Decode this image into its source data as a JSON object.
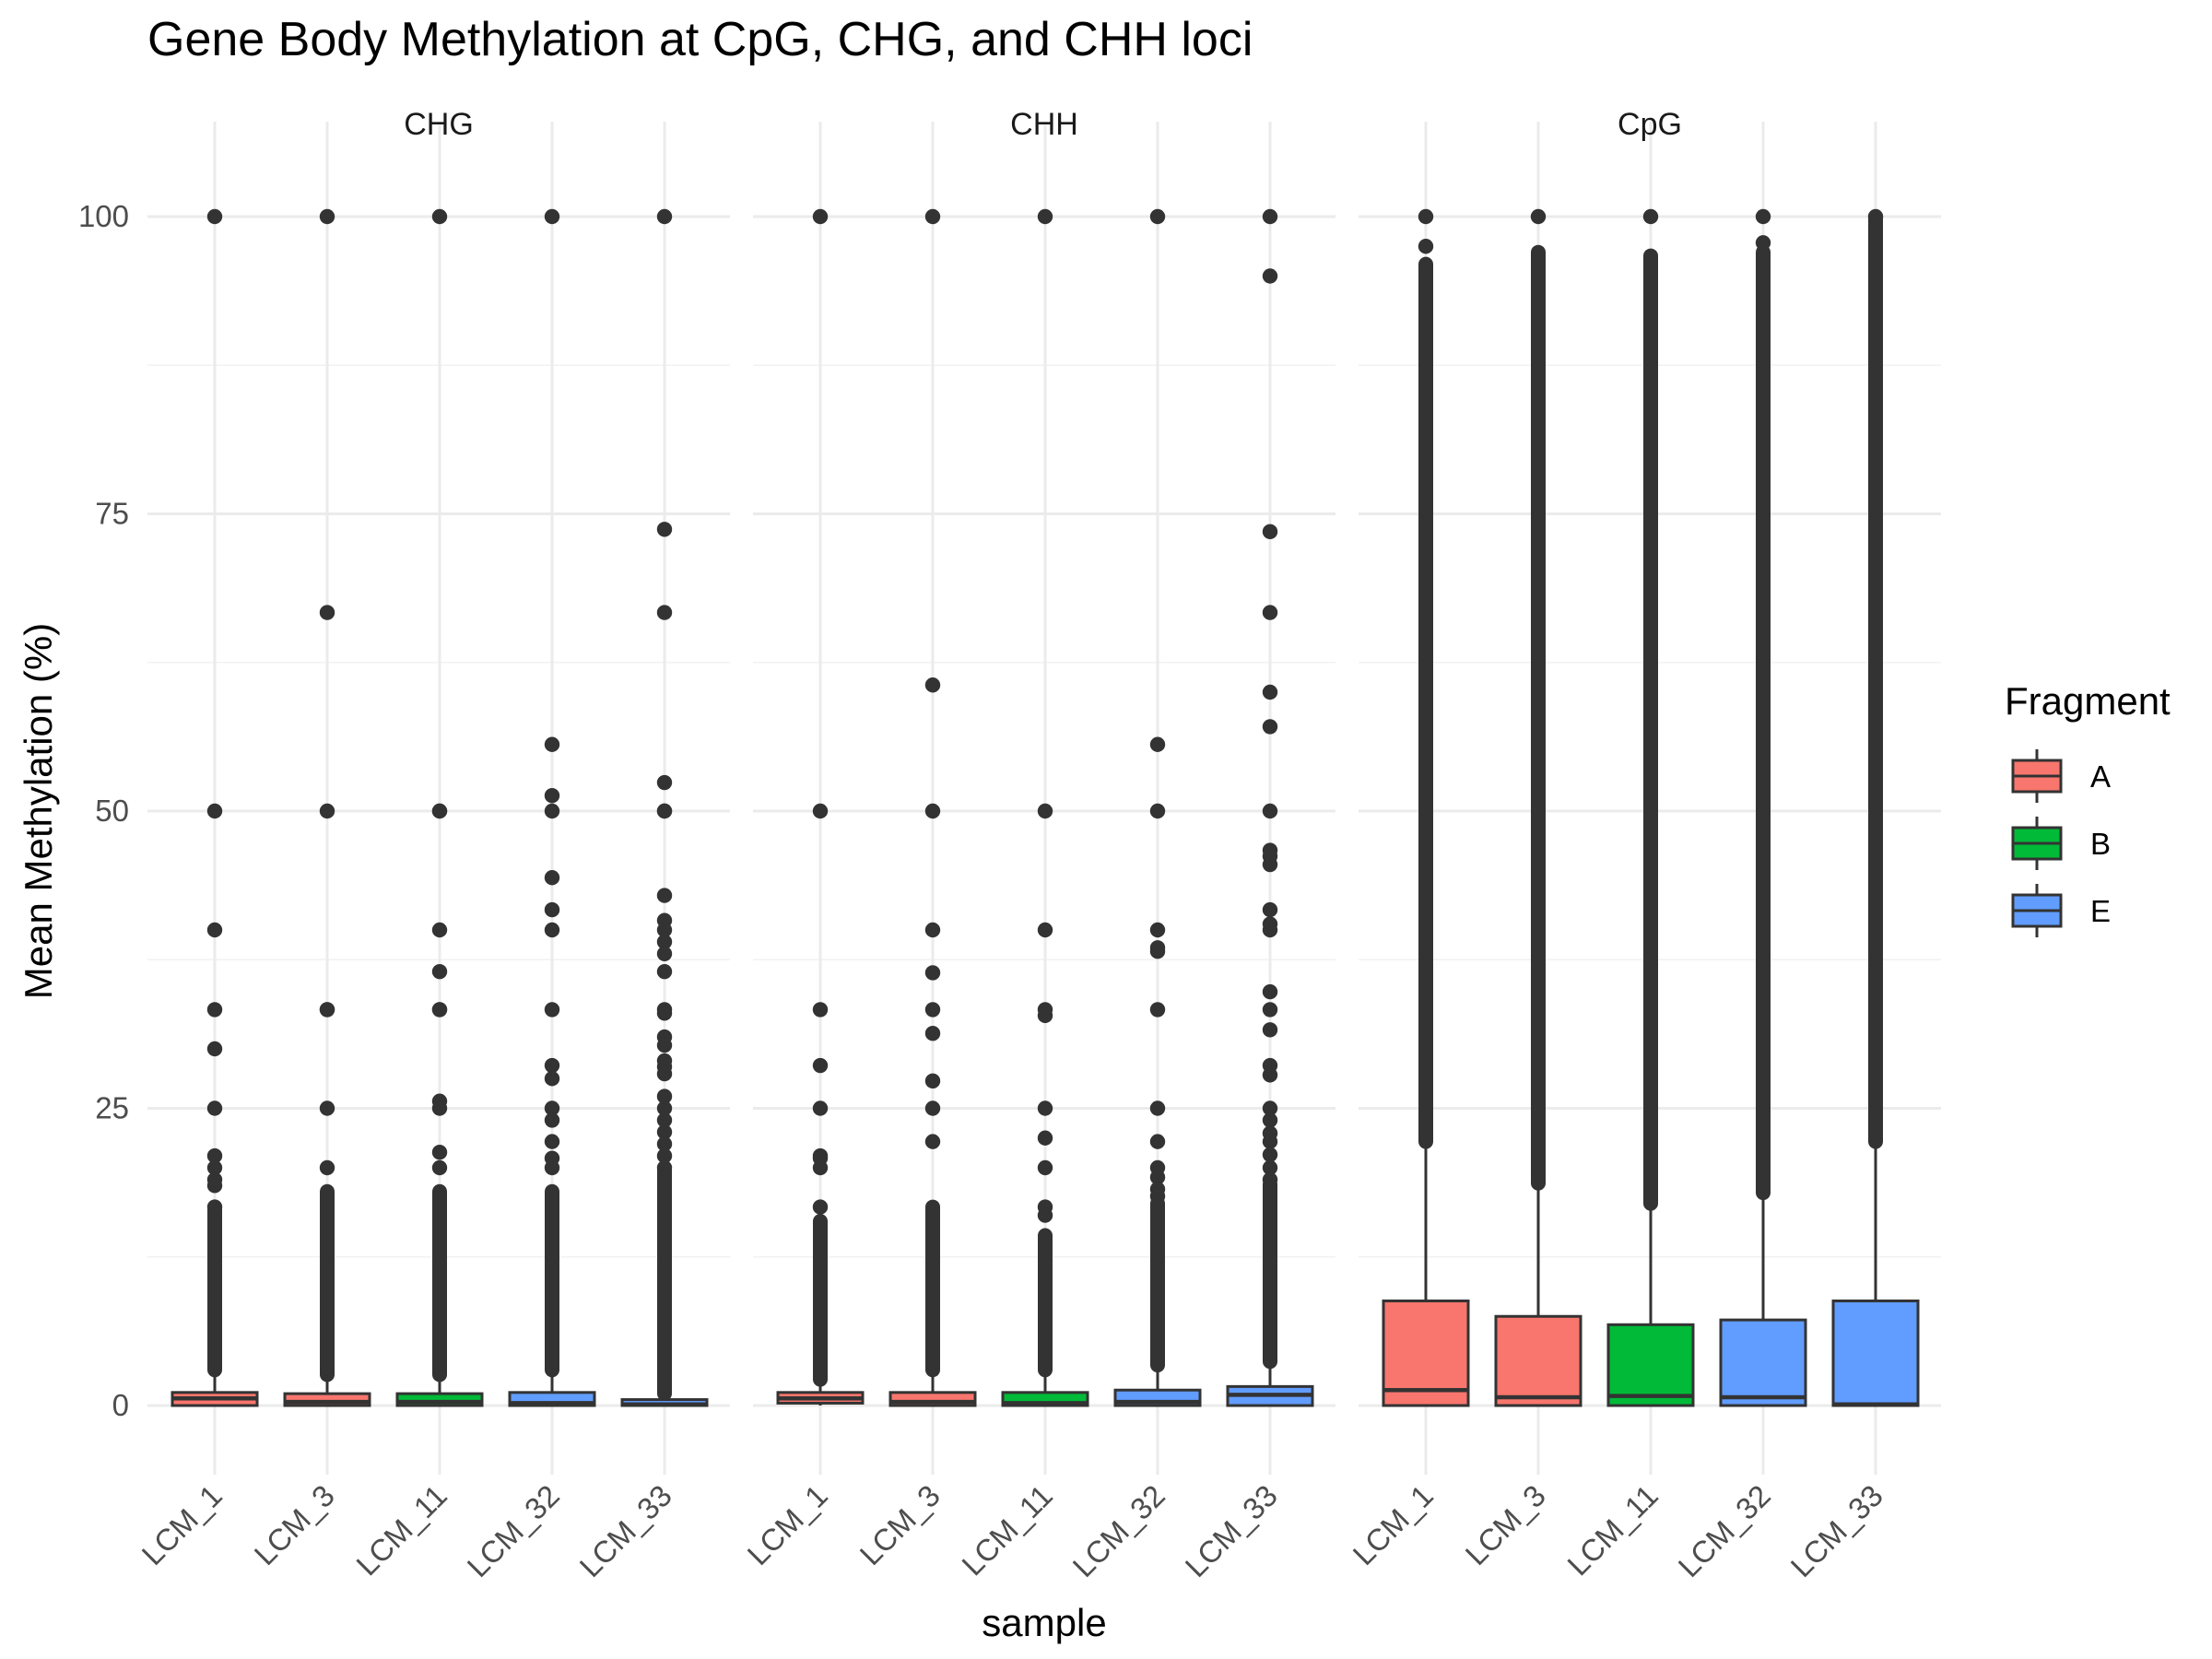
{
  "chart_data": {
    "type": "boxplot",
    "title": "Gene Body Methylation at CpG, CHG, and CHH loci",
    "xlabel": "sample",
    "ylabel": "Mean Methylation (%)",
    "ylim": [
      0,
      100
    ],
    "yticks": [
      0,
      25,
      50,
      75,
      100
    ],
    "grid": true,
    "categories": [
      "LCM_1",
      "LCM_3",
      "LCM_11",
      "LCM_32",
      "LCM_33"
    ],
    "fragments": [
      "A",
      "A",
      "B",
      "E",
      "E"
    ],
    "legend": {
      "title": "Fragment",
      "placement": "right",
      "entries": [
        {
          "label": "A",
          "color": "#F8766D"
        },
        {
          "label": "B",
          "color": "#00BA38"
        },
        {
          "label": "E",
          "color": "#619CFF"
        }
      ]
    },
    "facets": [
      {
        "name": "CHG",
        "boxes": [
          {
            "sample": "LCM_1",
            "q1": 0,
            "median": 0.6,
            "q3": 1.1,
            "whisker_low": 0,
            "whisker_high": 2.8,
            "outliers": [
              100,
              50,
              40,
              33.3,
              30,
              25,
              21,
              20,
              19,
              18.5,
              16.7
            ],
            "outlier_band": [
              3,
              16.5
            ]
          },
          {
            "sample": "LCM_3",
            "q1": 0,
            "median": 0.3,
            "q3": 1.0,
            "whisker_low": 0,
            "whisker_high": 2.5,
            "outliers": [
              100,
              66.7,
              50,
              33.3,
              33.3,
              25,
              20
            ],
            "outlier_band": [
              2.6,
              18
            ]
          },
          {
            "sample": "LCM_11",
            "q1": 0,
            "median": 0.3,
            "q3": 1.0,
            "whisker_low": 0,
            "whisker_high": 2.5,
            "outliers": [
              100,
              50,
              50,
              40,
              36.5,
              33.3,
              33.3,
              25.6,
              25,
              21.3,
              20
            ],
            "outlier_band": [
              2.6,
              18
            ]
          },
          {
            "sample": "LCM_32",
            "q1": 0,
            "median": 0.2,
            "q3": 1.1,
            "whisker_low": 0,
            "whisker_high": 2.7,
            "outliers": [
              100,
              55.6,
              51.3,
              50,
              44.4,
              41.7,
              40,
              33.3,
              28.6,
              27.5,
              25,
              24,
              22.2,
              20.8,
              20
            ],
            "outlier_band": [
              3,
              18
            ]
          },
          {
            "sample": "LCM_33",
            "q1": 0,
            "median": 0.1,
            "q3": 0.5,
            "whisker_low": 0,
            "whisker_high": 1.0,
            "outliers": [
              100,
              73.7,
              66.7,
              52.4,
              50,
              50,
              42.9,
              40.8,
              40,
              39,
              38,
              36.5,
              33.3,
              33,
              31,
              30.3,
              29,
              28.5,
              27.9,
              26,
              25,
              24,
              23,
              22,
              21,
              20
            ],
            "outlier_band": [
              1,
              20
            ]
          }
        ]
      },
      {
        "name": "CHH",
        "boxes": [
          {
            "sample": "LCM_1",
            "q1": 0.2,
            "median": 0.6,
            "q3": 1.1,
            "whisker_low": 0,
            "whisker_high": 2.0,
            "outliers": [
              100,
              50,
              33.3,
              28.6,
              25,
              21,
              20.8,
              20,
              16.7
            ],
            "outlier_band": [
              2.2,
              15.5
            ]
          },
          {
            "sample": "LCM_3",
            "q1": 0,
            "median": 0.3,
            "q3": 1.1,
            "whisker_low": 0,
            "whisker_high": 2.7,
            "outliers": [
              100,
              60.6,
              50,
              40,
              36.4,
              33.3,
              31.3,
              27.3,
              25,
              22.2
            ],
            "outlier_band": [
              3,
              16.7
            ]
          },
          {
            "sample": "LCM_11",
            "q1": 0,
            "median": 0.2,
            "q3": 1.1,
            "whisker_low": 0,
            "whisker_high": 2.7,
            "outliers": [
              100,
              50,
              40,
              33.3,
              32.8,
              25,
              22.5,
              20,
              16.7,
              16
            ],
            "outlier_band": [
              3,
              14.3
            ]
          },
          {
            "sample": "LCM_32",
            "q1": 0,
            "median": 0.3,
            "q3": 1.3,
            "whisker_low": 0,
            "whisker_high": 3.2,
            "outliers": [
              100,
              55.6,
              50,
              40,
              38.5,
              38.2,
              33.3,
              25,
              22.2,
              20,
              19.2,
              18.2,
              17.6
            ],
            "outlier_band": [
              3.4,
              17
            ]
          },
          {
            "sample": "LCM_33",
            "q1": 0,
            "median": 0.9,
            "q3": 1.6,
            "whisker_low": 0,
            "whisker_high": 3.7,
            "outliers": [
              100,
              95,
              73.5,
              66.7,
              60,
              57.1,
              50,
              46.7,
              46.2,
              45.5,
              41.7,
              40.5,
              40,
              34.8,
              33.3,
              31.6,
              28.6,
              27.8,
              25,
              24,
              22.9,
              22.2,
              21.1,
              20,
              19
            ],
            "outlier_band": [
              3.7,
              18.6
            ]
          }
        ]
      },
      {
        "name": "CpG",
        "boxes": [
          {
            "sample": "LCM_1",
            "q1": 0,
            "median": 1.3,
            "q3": 8.8,
            "whisker_low": 0,
            "whisker_high": 22,
            "outliers": [
              100,
              97.5
            ],
            "outlier_band": [
              22.2,
              96
            ]
          },
          {
            "sample": "LCM_3",
            "q1": 0,
            "median": 0.7,
            "q3": 7.5,
            "whisker_low": 0,
            "whisker_high": 18.5,
            "outliers": [
              100
            ],
            "outlier_band": [
              18.7,
              97
            ]
          },
          {
            "sample": "LCM_11",
            "q1": 0,
            "median": 0.8,
            "q3": 6.8,
            "whisker_low": 0,
            "whisker_high": 16.8,
            "outliers": [
              100
            ],
            "outlier_band": [
              17,
              96.7
            ]
          },
          {
            "sample": "LCM_32",
            "q1": 0,
            "median": 0.7,
            "q3": 7.2,
            "whisker_low": 0,
            "whisker_high": 17.7,
            "outliers": [
              100,
              97.8
            ],
            "outlier_band": [
              17.9,
              97
            ]
          },
          {
            "sample": "LCM_33",
            "q1": 0,
            "median": 0.1,
            "q3": 8.8,
            "whisker_low": 0,
            "whisker_high": 22,
            "outliers": [
              100
            ],
            "outlier_band": [
              22.2,
              100
            ]
          }
        ]
      }
    ]
  }
}
